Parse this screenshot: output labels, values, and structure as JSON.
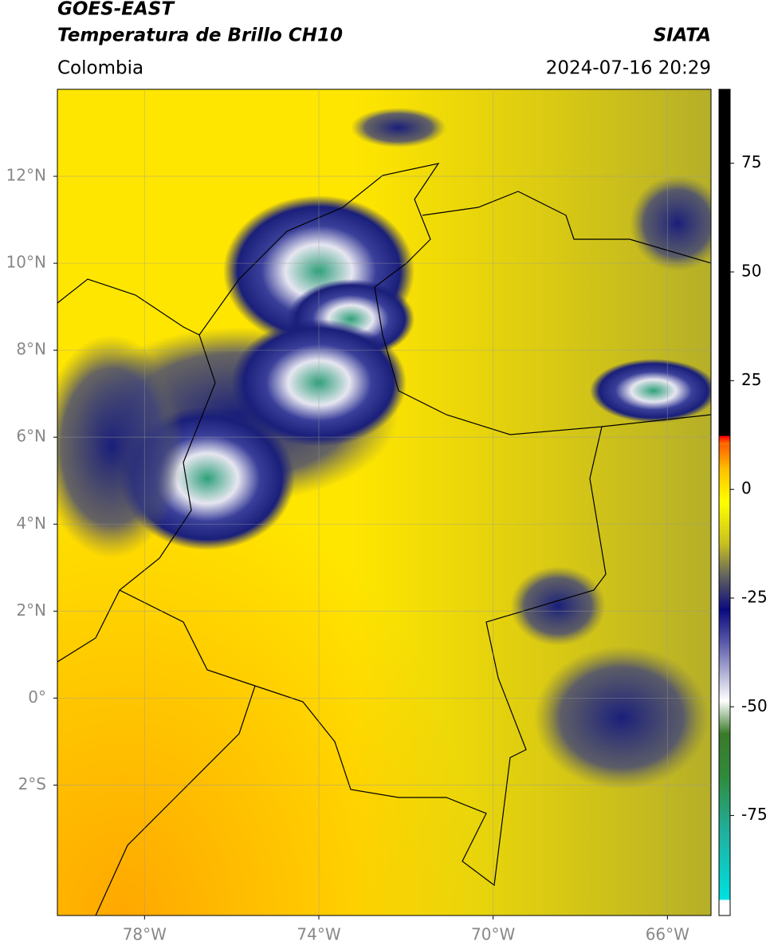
{
  "header": {
    "title": "GOES-EAST",
    "subtitle": "Temperatura de Brillo CH10",
    "source": "SIATA",
    "region": "Colombia",
    "timestamp": "2024-07-16 20:29"
  },
  "map": {
    "lon_range": [
      -80,
      -65
    ],
    "lat_range": [
      -5,
      14
    ],
    "lon_ticks": [
      {
        "value": -78,
        "label": "78°W"
      },
      {
        "value": -74,
        "label": "74°W"
      },
      {
        "value": -70,
        "label": "70°W"
      },
      {
        "value": -66,
        "label": "66°W"
      }
    ],
    "lat_ticks": [
      {
        "value": 12,
        "label": "12°N"
      },
      {
        "value": 10,
        "label": "10°N"
      },
      {
        "value": 8,
        "label": "8°N"
      },
      {
        "value": 6,
        "label": "6°N"
      },
      {
        "value": 4,
        "label": "4°N"
      },
      {
        "value": 2,
        "label": "2°N"
      },
      {
        "value": 0,
        "label": "0°"
      },
      {
        "value": -2,
        "label": "2°S"
      }
    ],
    "grid": true
  },
  "colorbar": {
    "range": [
      -98,
      92
    ],
    "ticks": [
      75,
      50,
      25,
      0,
      -25,
      -50,
      -75
    ]
  }
}
